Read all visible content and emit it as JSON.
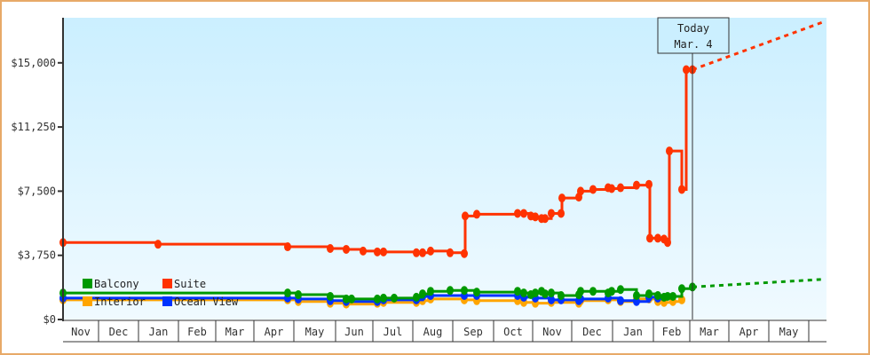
{
  "chart_data": {
    "type": "line",
    "title": "",
    "xlabel": "",
    "ylabel": "",
    "ylim": [
      0,
      17500
    ],
    "y_ticks": [
      "$0",
      "$3,750",
      "$7,500",
      "$11,250",
      "$15,000"
    ],
    "y_tick_values": [
      0,
      3750,
      7500,
      11250,
      15000
    ],
    "x_ticks": [
      "Nov",
      "Dec",
      "Jan",
      "Feb",
      "Mar",
      "Apr",
      "May",
      "Jun",
      "Jul",
      "Aug",
      "Sep",
      "Oct",
      "Nov",
      "Dec",
      "Jan",
      "Feb",
      "Mar",
      "Apr",
      "May"
    ],
    "grid": false,
    "legend_position": "lower-left inside",
    "legend": [
      {
        "name": "Balcony",
        "color": "#009900"
      },
      {
        "name": "Suite",
        "color": "#ff3300"
      },
      {
        "name": "Interior",
        "color": "#ffa500"
      },
      {
        "name": "Ocean View",
        "color": "#0033ff"
      }
    ],
    "annotation": {
      "line1": "Today",
      "line2": "Mar. 4"
    },
    "series": [
      {
        "name": "Suite",
        "color": "#ff3300",
        "points": [
          [
            71,
            4500
          ],
          [
            178,
            4400
          ],
          [
            324,
            4250
          ],
          [
            372,
            4150
          ],
          [
            390,
            4100
          ],
          [
            409,
            4000
          ],
          [
            425,
            3950
          ],
          [
            432,
            3950
          ],
          [
            469,
            3900
          ],
          [
            476,
            3900
          ],
          [
            485,
            4000
          ],
          [
            507,
            3900
          ],
          [
            523,
            3850
          ],
          [
            524,
            6050
          ],
          [
            537,
            6150
          ],
          [
            583,
            6200
          ],
          [
            590,
            6200
          ],
          [
            598,
            6050
          ],
          [
            603,
            6000
          ],
          [
            610,
            5900
          ],
          [
            614,
            5900
          ],
          [
            621,
            6200
          ],
          [
            632,
            6200
          ],
          [
            633,
            7100
          ],
          [
            652,
            7150
          ],
          [
            654,
            7500
          ],
          [
            668,
            7600
          ],
          [
            685,
            7700
          ],
          [
            689,
            7650
          ],
          [
            699,
            7700
          ],
          [
            717,
            7850
          ],
          [
            731,
            7900
          ],
          [
            732,
            4750
          ],
          [
            741,
            4750
          ],
          [
            748,
            4700
          ],
          [
            752,
            4500
          ],
          [
            754,
            9850
          ],
          [
            768,
            7600
          ],
          [
            773,
            14600
          ],
          [
            780,
            14600
          ]
        ],
        "forecast": [
          [
            780,
            14600
          ],
          [
            928,
            17400
          ]
        ]
      },
      {
        "name": "Balcony",
        "color": "#009900",
        "points": [
          [
            71,
            1550
          ],
          [
            324,
            1550
          ],
          [
            336,
            1450
          ],
          [
            372,
            1350
          ],
          [
            390,
            1200
          ],
          [
            396,
            1200
          ],
          [
            425,
            1200
          ],
          [
            432,
            1250
          ],
          [
            444,
            1250
          ],
          [
            469,
            1300
          ],
          [
            476,
            1500
          ],
          [
            485,
            1650
          ],
          [
            507,
            1700
          ],
          [
            523,
            1700
          ],
          [
            537,
            1600
          ],
          [
            583,
            1650
          ],
          [
            590,
            1550
          ],
          [
            598,
            1450
          ],
          [
            603,
            1550
          ],
          [
            610,
            1650
          ],
          [
            614,
            1500
          ],
          [
            621,
            1550
          ],
          [
            632,
            1400
          ],
          [
            652,
            1450
          ],
          [
            654,
            1650
          ],
          [
            668,
            1650
          ],
          [
            685,
            1550
          ],
          [
            689,
            1650
          ],
          [
            699,
            1750
          ],
          [
            717,
            1400
          ],
          [
            731,
            1500
          ],
          [
            741,
            1400
          ],
          [
            748,
            1300
          ],
          [
            752,
            1350
          ],
          [
            758,
            1350
          ],
          [
            768,
            1800
          ],
          [
            780,
            1900
          ]
        ],
        "forecast": [
          [
            780,
            1900
          ],
          [
            928,
            2350
          ]
        ]
      },
      {
        "name": "Ocean View",
        "color": "#0033ff",
        "points": [
          [
            71,
            1250
          ],
          [
            324,
            1250
          ],
          [
            336,
            1200
          ],
          [
            372,
            1100
          ],
          [
            390,
            1050
          ],
          [
            425,
            1050
          ],
          [
            432,
            1150
          ],
          [
            469,
            1150
          ],
          [
            476,
            1350
          ],
          [
            485,
            1400
          ],
          [
            523,
            1400
          ],
          [
            537,
            1400
          ],
          [
            583,
            1400
          ],
          [
            590,
            1300
          ],
          [
            603,
            1250
          ],
          [
            621,
            1150
          ],
          [
            632,
            1150
          ],
          [
            652,
            1100
          ],
          [
            654,
            1200
          ],
          [
            685,
            1250
          ],
          [
            699,
            1100
          ],
          [
            717,
            1050
          ],
          [
            731,
            1300
          ],
          [
            741,
            1250
          ]
        ]
      },
      {
        "name": "Interior",
        "color": "#ffa500",
        "points": [
          [
            71,
            1150
          ],
          [
            324,
            1150
          ],
          [
            336,
            1050
          ],
          [
            372,
            950
          ],
          [
            390,
            900
          ],
          [
            425,
            950
          ],
          [
            432,
            1000
          ],
          [
            469,
            1000
          ],
          [
            476,
            1100
          ],
          [
            485,
            1200
          ],
          [
            523,
            1150
          ],
          [
            537,
            1100
          ],
          [
            583,
            1100
          ],
          [
            590,
            1000
          ],
          [
            603,
            950
          ],
          [
            621,
            1000
          ],
          [
            652,
            950
          ],
          [
            654,
            1100
          ],
          [
            685,
            1150
          ],
          [
            699,
            1050
          ],
          [
            717,
            1200
          ],
          [
            731,
            1200
          ],
          [
            741,
            1050
          ],
          [
            748,
            1000
          ],
          [
            758,
            1050
          ],
          [
            768,
            1150
          ]
        ]
      }
    ]
  }
}
